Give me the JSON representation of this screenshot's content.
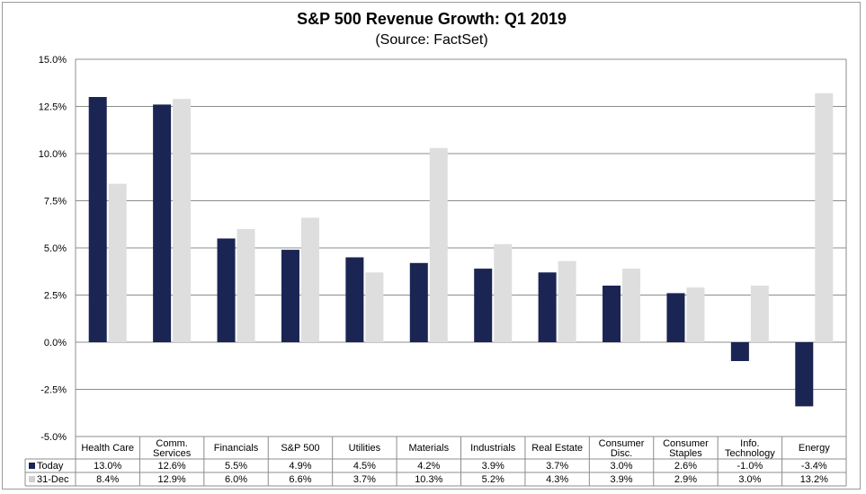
{
  "chart_data": {
    "type": "bar",
    "title": "S&P 500 Revenue Growth: Q1 2019",
    "subtitle": "(Source: FactSet)",
    "categories": [
      [
        "Health Care"
      ],
      [
        "Comm.",
        "Services"
      ],
      [
        "Financials"
      ],
      [
        "S&P 500"
      ],
      [
        "Utilities"
      ],
      [
        "Materials"
      ],
      [
        "Industrials"
      ],
      [
        "Real Estate"
      ],
      [
        "Consumer",
        "Disc."
      ],
      [
        "Consumer",
        "Staples"
      ],
      [
        "Info.",
        "Technology"
      ],
      [
        "Energy"
      ]
    ],
    "series": [
      {
        "name": "Today",
        "color": "#1a2553",
        "values": [
          13.0,
          12.6,
          5.5,
          4.9,
          4.5,
          4.2,
          3.9,
          3.7,
          3.0,
          2.6,
          -1.0,
          -3.4
        ],
        "labels": [
          "13.0%",
          "12.6%",
          "5.5%",
          "4.9%",
          "4.5%",
          "4.2%",
          "3.9%",
          "3.7%",
          "3.0%",
          "2.6%",
          "-1.0%",
          "-3.4%"
        ]
      },
      {
        "name": "31-Dec",
        "color": "#dedede",
        "values": [
          8.4,
          12.9,
          6.0,
          6.6,
          3.7,
          10.3,
          5.2,
          4.3,
          3.9,
          2.9,
          3.0,
          13.2
        ],
        "labels": [
          "8.4%",
          "12.9%",
          "6.0%",
          "6.6%",
          "3.7%",
          "10.3%",
          "5.2%",
          "4.3%",
          "3.9%",
          "2.9%",
          "3.0%",
          "13.2%"
        ]
      }
    ],
    "ylim": [
      -5.0,
      15.0
    ],
    "yticks": [
      15.0,
      12.5,
      10.0,
      7.5,
      5.0,
      2.5,
      0.0,
      -2.5,
      -5.0
    ],
    "ytick_labels": [
      "15.0%",
      "12.5%",
      "10.0%",
      "7.5%",
      "5.0%",
      "2.5%",
      "0.0%",
      "-2.5%",
      "-5.0%"
    ],
    "grid": true,
    "legend": "data-table"
  }
}
